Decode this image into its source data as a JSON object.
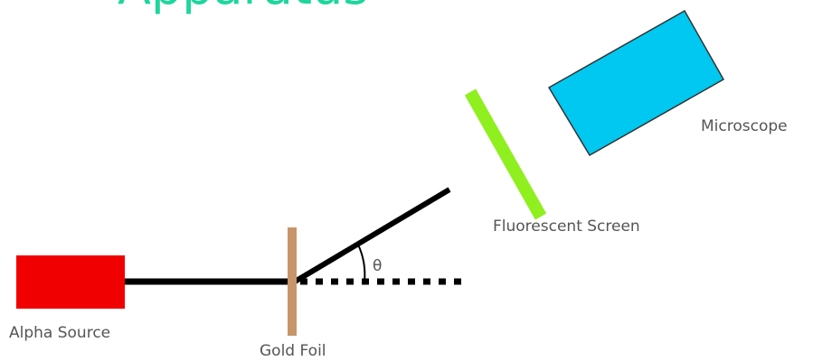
{
  "title": "Apparatus",
  "labels": {
    "alpha_source": "Alpha Source",
    "gold_foil": "Gold Foil",
    "angle": "θ",
    "screen": "Fluorescent Screen",
    "microscope": "Microscope"
  }
}
